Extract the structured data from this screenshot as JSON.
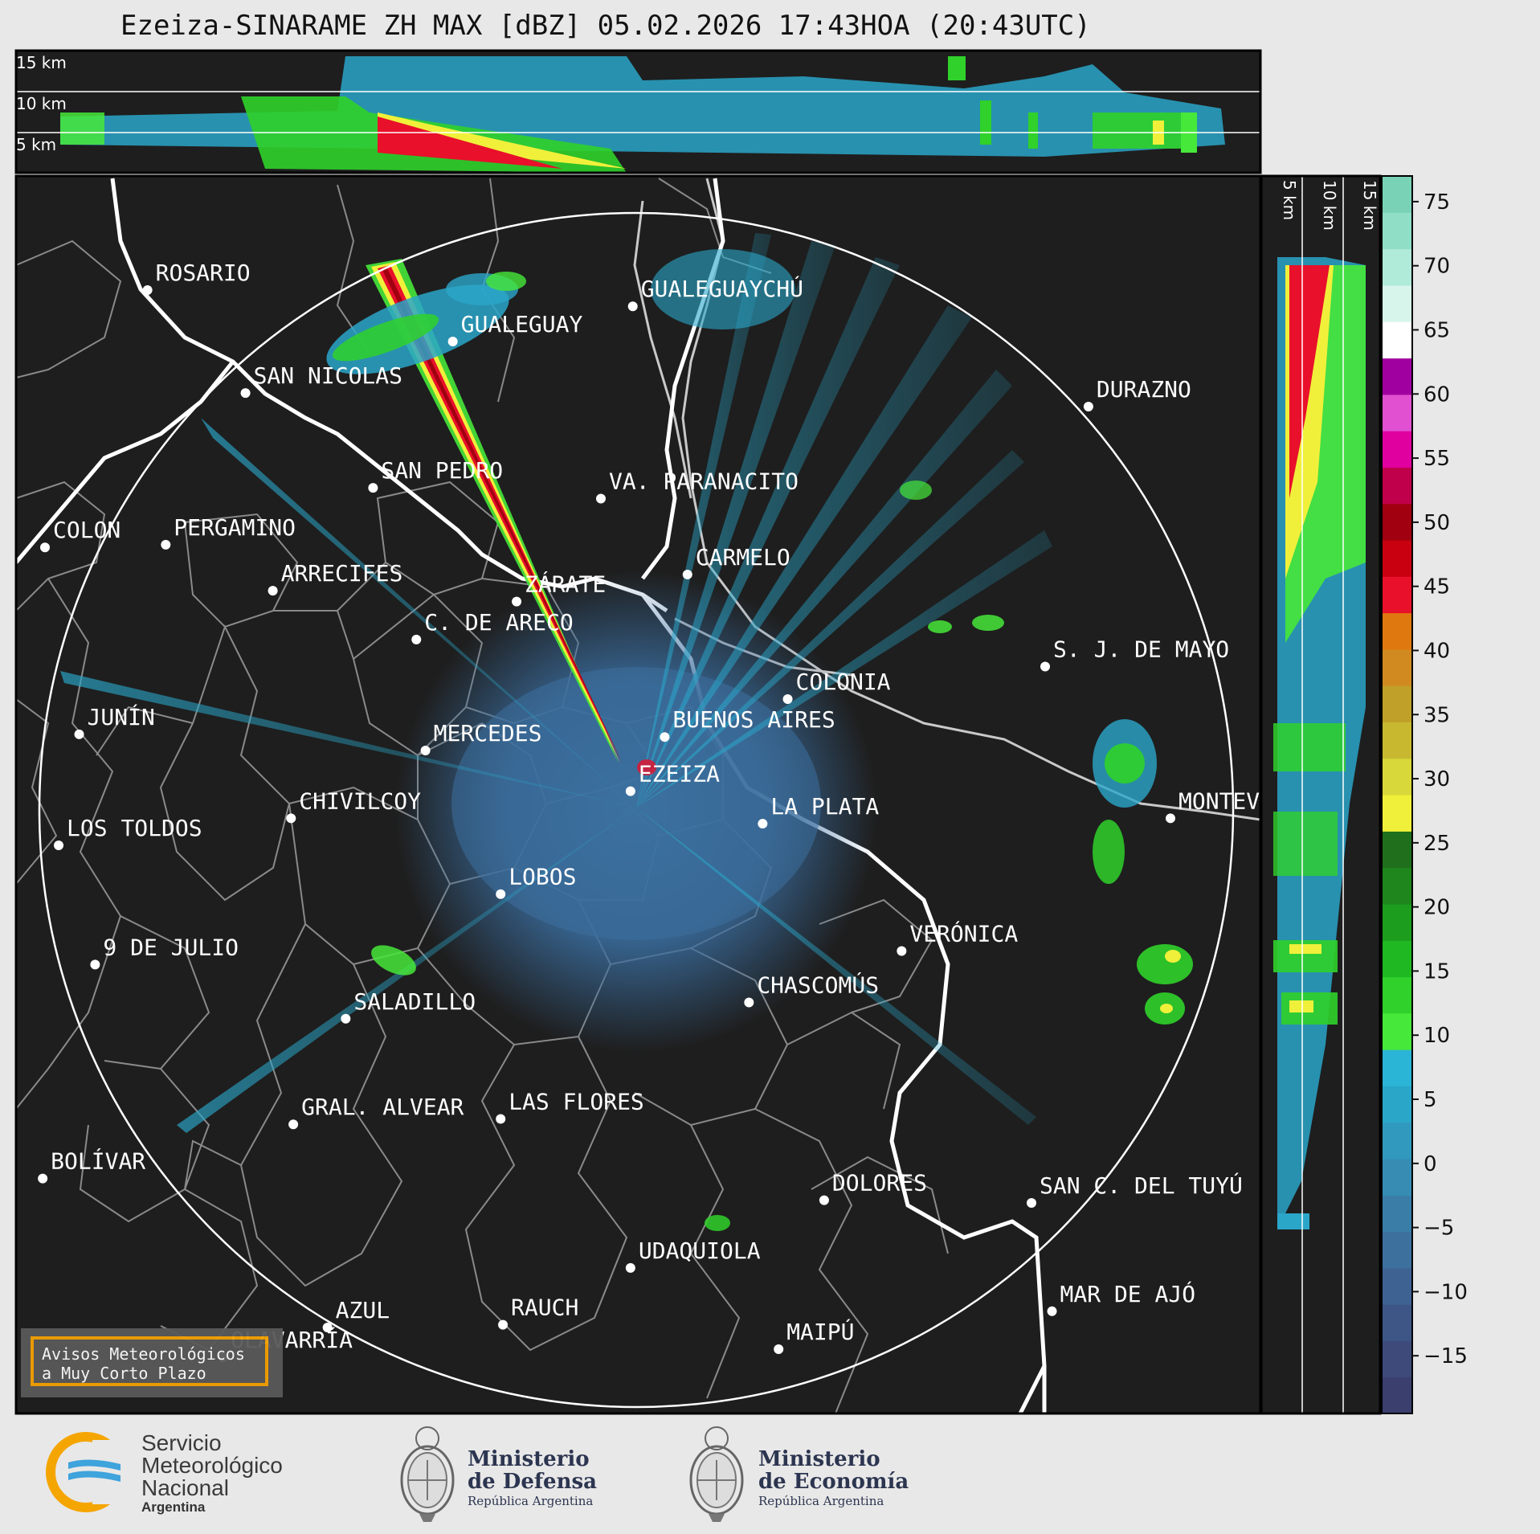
{
  "title": "Ezeiza-SINARAME ZH MAX [dBZ] 05.02.2026 17:43HOA (20:43UTC)",
  "cross_section_labels": {
    "top": [
      "15 km",
      "10 km",
      "5 km"
    ],
    "right": [
      "5 km",
      "10 km",
      "15 km"
    ]
  },
  "cities": [
    {
      "name": "ROSARIO",
      "lat": -32.95,
      "lon": -60.65
    },
    {
      "name": "GUALEGUAYCHÚ",
      "lat": -33.01,
      "lon": -58.52
    },
    {
      "name": "GUALEGUAY",
      "lat": -33.14,
      "lon": -59.31
    },
    {
      "name": "SAN NICOLAS",
      "lat": -33.33,
      "lon": -60.22
    },
    {
      "name": "DURAZNO",
      "lat": -33.38,
      "lon": -56.52
    },
    {
      "name": "SAN PEDRO",
      "lat": -33.68,
      "lon": -59.66
    },
    {
      "name": "VA. PARANACITO",
      "lat": -33.72,
      "lon": -58.66
    },
    {
      "name": "COLON",
      "lat": -33.9,
      "lon": -61.1
    },
    {
      "name": "PERGAMINO",
      "lat": -33.89,
      "lon": -60.57
    },
    {
      "name": "CARMELO",
      "lat": -34.0,
      "lon": -58.28
    },
    {
      "name": "ARRECIFES",
      "lat": -34.06,
      "lon": -60.1
    },
    {
      "name": "ZÁRATE",
      "lat": -34.1,
      "lon": -59.03
    },
    {
      "name": "S. J. DE MAYO",
      "lat": -34.34,
      "lon": -56.71
    },
    {
      "name": "C. DE ARECO",
      "lat": -34.24,
      "lon": -59.47
    },
    {
      "name": "COLONIA",
      "lat": -34.46,
      "lon": -57.84
    },
    {
      "name": "JUNÍN",
      "lat": -34.59,
      "lon": -60.95
    },
    {
      "name": "BUENOS AIRES",
      "lat": -34.6,
      "lon": -58.38
    },
    {
      "name": "MERCEDES",
      "lat": -34.65,
      "lon": -59.43
    },
    {
      "name": "EZEIZA",
      "lat": -34.8,
      "lon": -58.53
    },
    {
      "name": "MONTEVIDEO",
      "lat": -34.9,
      "lon": -56.16
    },
    {
      "name": "CHIVILCOY",
      "lat": -34.9,
      "lon": -60.02
    },
    {
      "name": "LA PLATA",
      "lat": -34.92,
      "lon": -57.95
    },
    {
      "name": "LOS TOLDOS",
      "lat": -35.0,
      "lon": -61.04
    },
    {
      "name": "LOBOS",
      "lat": -35.18,
      "lon": -59.1
    },
    {
      "name": "VERÓNICA",
      "lat": -35.39,
      "lon": -57.34
    },
    {
      "name": "9 DE JULIO",
      "lat": -35.44,
      "lon": -60.88
    },
    {
      "name": "CHASCOMÚS",
      "lat": -35.58,
      "lon": -58.01
    },
    {
      "name": "SALADILLO",
      "lat": -35.64,
      "lon": -59.78
    },
    {
      "name": "GRAL. ALVEAR",
      "lat": -36.03,
      "lon": -60.01
    },
    {
      "name": "LAS FLORES",
      "lat": -36.01,
      "lon": -59.1
    },
    {
      "name": "BOLÍVAR",
      "lat": -36.23,
      "lon": -61.11
    },
    {
      "name": "DOLORES",
      "lat": -36.31,
      "lon": -57.68
    },
    {
      "name": "SAN C. DEL TUYÚ",
      "lat": -36.32,
      "lon": -56.77
    },
    {
      "name": "UDAQUIOLA",
      "lat": -36.56,
      "lon": -58.53
    },
    {
      "name": "MAR DE AJÓ",
      "lat": -36.72,
      "lon": -56.68
    },
    {
      "name": "AZUL",
      "lat": -36.78,
      "lon": -59.86
    },
    {
      "name": "RAUCH",
      "lat": -36.77,
      "lon": -59.09
    },
    {
      "name": "OLAVARRÍA",
      "lat": -36.89,
      "lon": -60.32
    },
    {
      "name": "MAIPÚ",
      "lat": -36.86,
      "lon": -57.88
    }
  ],
  "colorbar": {
    "ticks": [
      "75",
      "70",
      "65",
      "60",
      "55",
      "50",
      "45",
      "40",
      "35",
      "30",
      "25",
      "20",
      "15",
      "10",
      "5",
      "0",
      "−5",
      "−10",
      "−15"
    ],
    "colors": [
      "#3a3f6e",
      "#3d4a7a",
      "#3e5686",
      "#3e6392",
      "#3d709d",
      "#3a7ea8",
      "#368cb3",
      "#3199be",
      "#2aa6c9",
      "#2ab4d6",
      "#46e83a",
      "#2fd12a",
      "#1fb822",
      "#1c9d1e",
      "#1e861d",
      "#1f6f1c",
      "#f0f03a",
      "#d8d83a",
      "#c8b830",
      "#c0a028",
      "#d08a20",
      "#e07810",
      "#e8102a",
      "#c80010",
      "#a00010",
      "#c0004a",
      "#e000a0",
      "#e050d0",
      "#a000a0",
      "#ffffff",
      "#d8f5ec",
      "#b0ead8",
      "#90dec6",
      "#7ad2b6"
    ]
  },
  "warning": {
    "line1": "Avisos Meteorológicos",
    "line2": "a Muy Corto Plazo"
  },
  "footer": {
    "smn": [
      "Servicio",
      "Meteorológico",
      "Nacional"
    ],
    "smn_country": "Argentina",
    "ministries": [
      {
        "name1": "Ministerio",
        "name2": "de Defensa",
        "sub": "República Argentina"
      },
      {
        "name1": "Ministerio",
        "name2": "de Economía",
        "sub": "República Argentina"
      }
    ]
  }
}
